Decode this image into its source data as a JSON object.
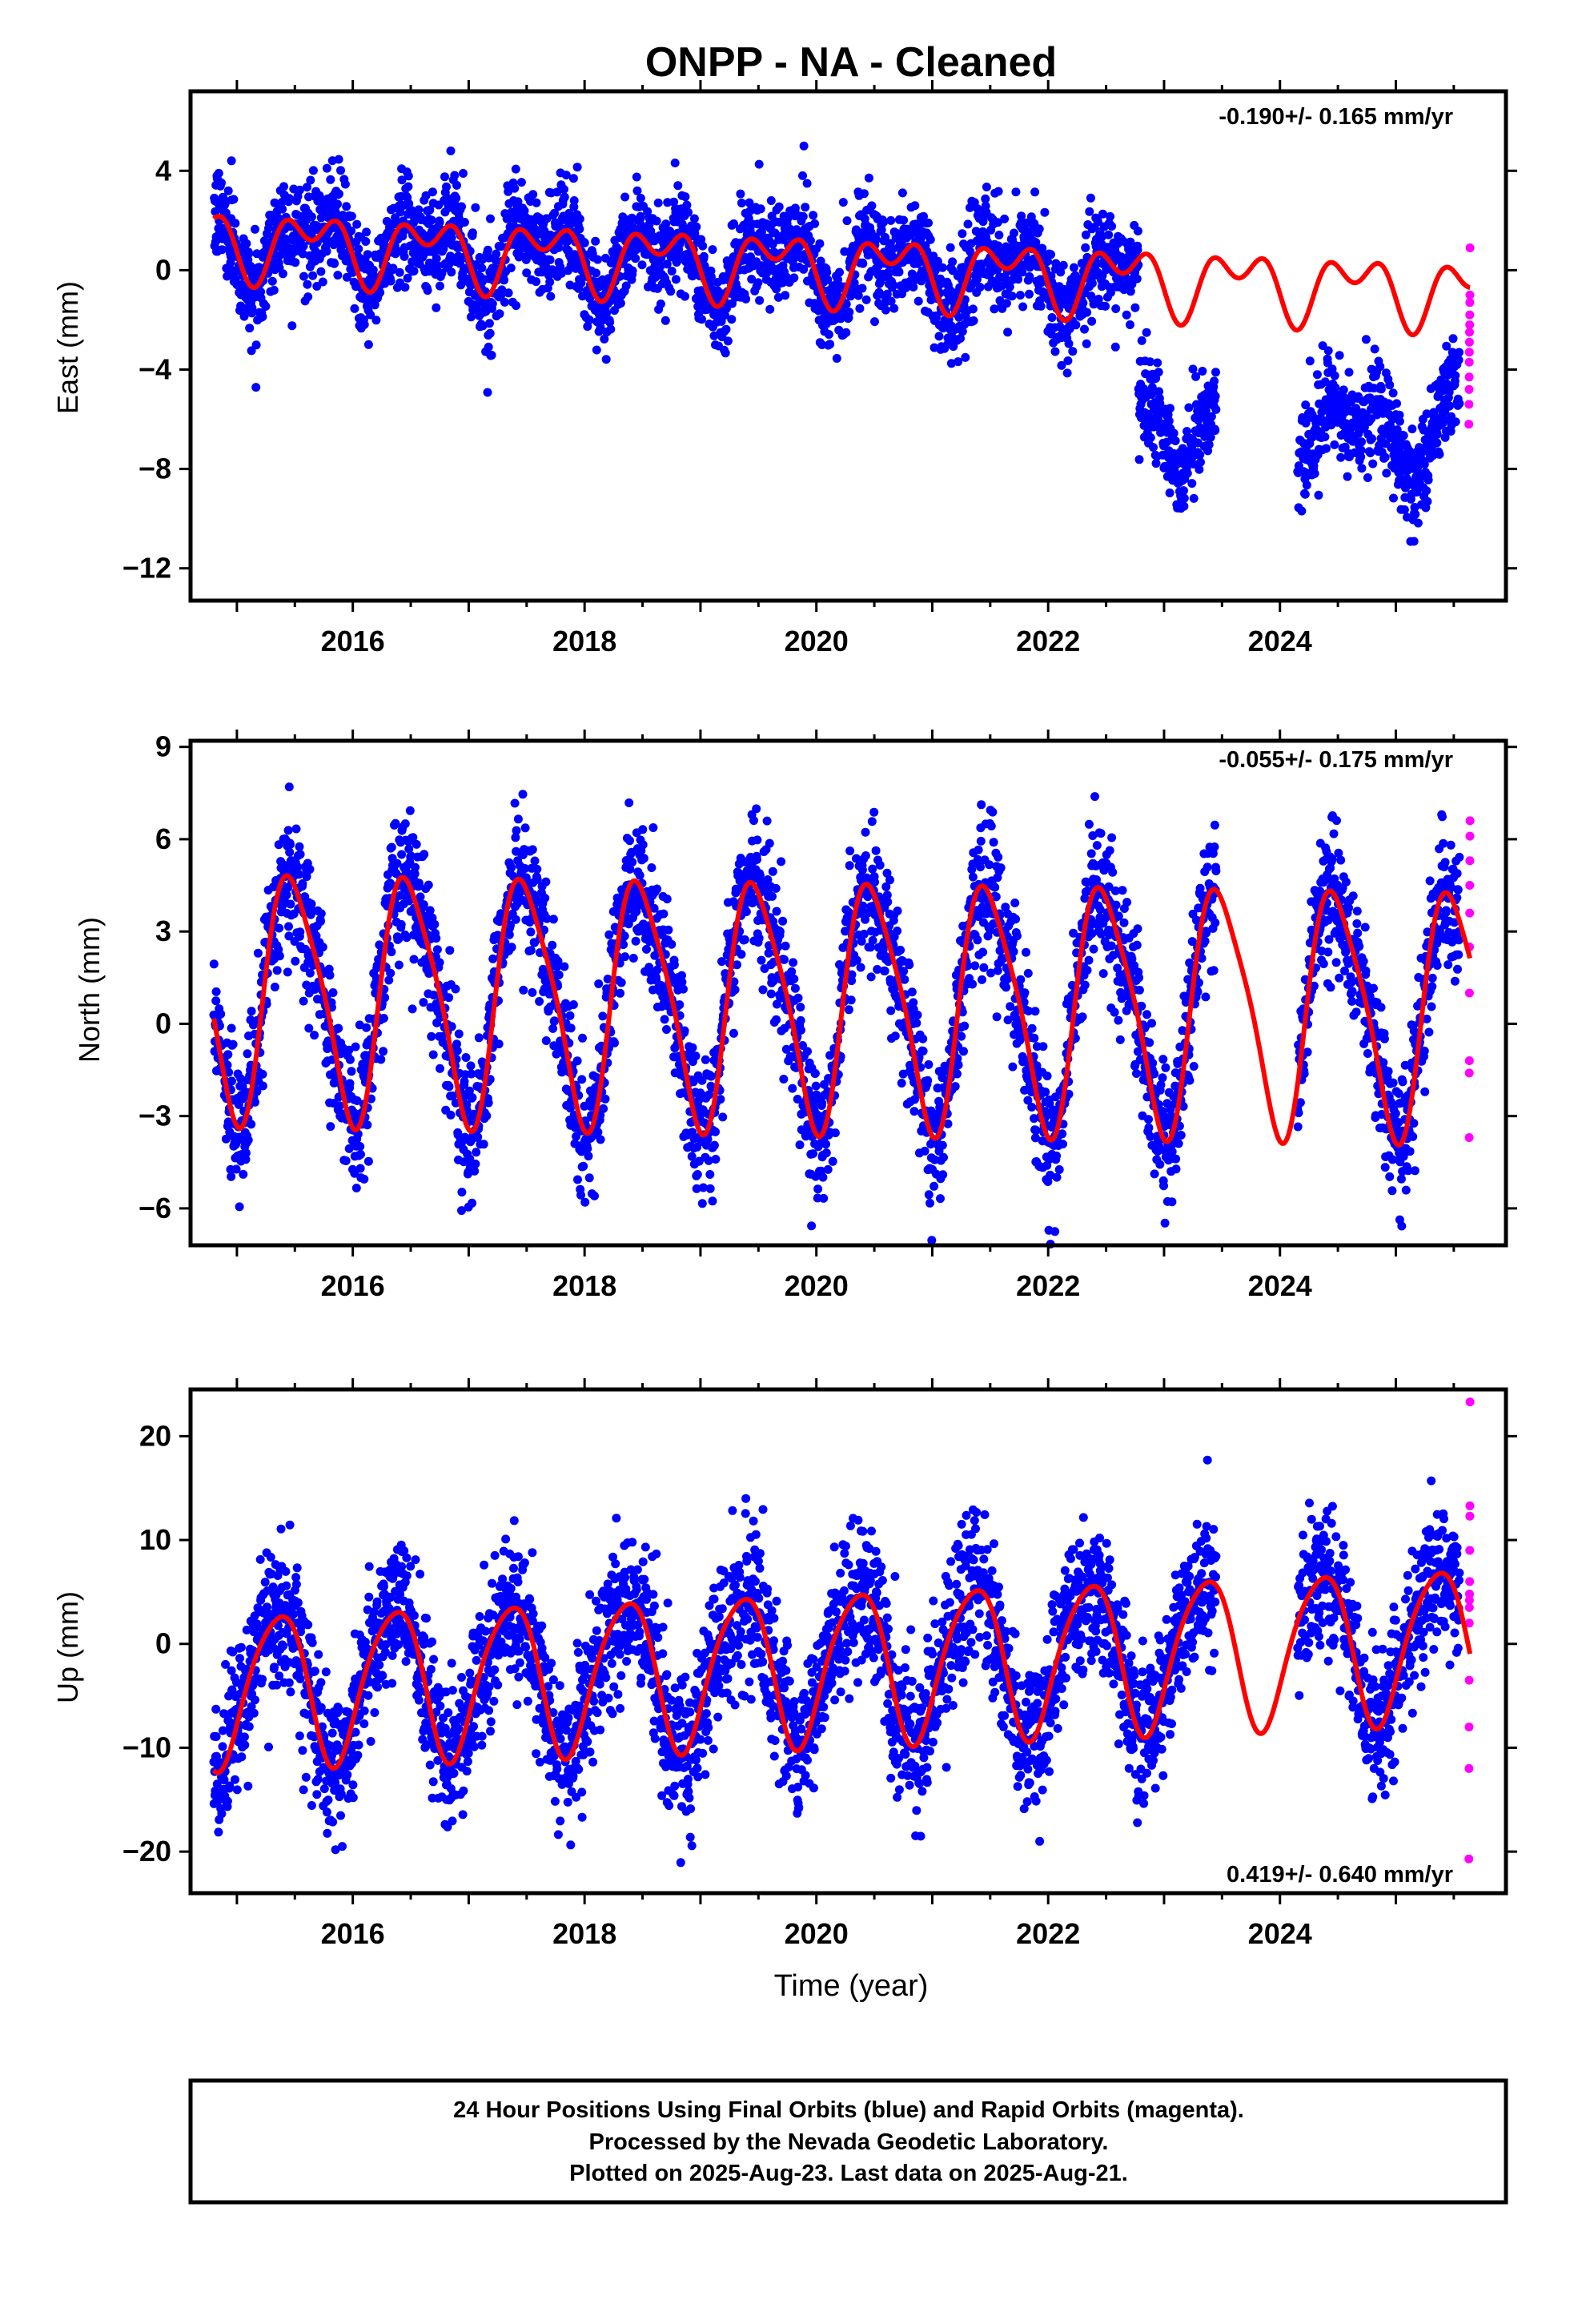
{
  "title": "ONPP  - NA - Cleaned",
  "xlabel": "Time (year)",
  "footer": [
    "24 Hour Positions Using Final Orbits (blue) and Rapid Orbits (magenta).",
    "Processed by the Nevada Geodetic Laboratory.",
    "Plotted on 2025-Aug-23. Last data on 2025-Aug-21."
  ],
  "colors": {
    "final": "#0000ff",
    "rapid": "#ff00ff",
    "model": "#ff0000",
    "frame": "#000000"
  },
  "chart_data": [
    {
      "type": "scatter",
      "name": "east",
      "ylabel": "East (mm)",
      "rate_label": "-0.190+/- 0.165 mm/yr",
      "xlim": [
        2014.6,
        2025.95
      ],
      "ylim": [
        -13.3,
        7.2
      ],
      "xticks": [
        2016,
        2018,
        2020,
        2022,
        2024
      ],
      "yticks": [
        4,
        0,
        -4,
        -8,
        -12
      ],
      "data_start": 2014.8,
      "final_end": 2025.55,
      "rapid_end": 2025.64,
      "gaps": [
        [
          2023.45,
          2024.15
        ]
      ],
      "model": {
        "offset": 0.2,
        "trend": -0.19,
        "annual": [
          -0.6,
          -0.8
        ],
        "semiannual": [
          0.2,
          -0.8
        ]
      },
      "jumps": [
        {
          "year": 2022.78,
          "size": -5.8,
          "recover_year": 2025.3,
          "recover_size": 2.3
        }
      ],
      "scatter_sd": 1.0,
      "rapid_values": [
        0.9,
        -1.0,
        -1.3,
        -1.8,
        -2.2,
        -2.5,
        -2.9,
        -3.3,
        -3.7,
        -4.3,
        -4.8,
        -5.4,
        -6.2
      ]
    },
    {
      "type": "scatter",
      "name": "north",
      "ylabel": "North (mm)",
      "rate_label": "-0.055+/- 0.175 mm/yr",
      "xlim": [
        2014.6,
        2025.95
      ],
      "ylim": [
        -7.2,
        9.2
      ],
      "xticks": [
        2016,
        2018,
        2020,
        2022,
        2024
      ],
      "yticks": [
        9,
        6,
        3,
        0,
        -3,
        -6
      ],
      "data_start": 2014.8,
      "final_end": 2025.55,
      "rapid_end": 2025.64,
      "gaps": [
        [
          2023.45,
          2024.15
        ]
      ],
      "model": {
        "offset": 0.7,
        "trend": -0.055,
        "annual": [
          -3.9,
          0.3
        ],
        "semiannual": [
          -0.4,
          -0.6
        ]
      },
      "jumps": [],
      "scatter_sd": 1.1,
      "rapid_values": [
        6.6,
        6.1,
        5.3,
        4.5,
        3.6,
        2.5,
        1.0,
        -1.2,
        -1.6,
        -3.7
      ]
    },
    {
      "type": "scatter",
      "name": "up",
      "ylabel": "Up (mm)",
      "rate_label": "0.419+/- 0.640 mm/yr",
      "xlim": [
        2014.6,
        2025.95
      ],
      "ylim": [
        -24,
        24.5
      ],
      "xticks": [
        2016,
        2018,
        2020,
        2022,
        2024
      ],
      "yticks": [
        20,
        10,
        0,
        -10,
        -20
      ],
      "data_start": 2014.8,
      "final_end": 2025.55,
      "rapid_end": 2025.64,
      "gaps": [
        [
          2023.45,
          2024.15
        ]
      ],
      "model": {
        "offset": -2.1,
        "trend": 0.419,
        "annual": [
          -4.4,
          5.8
        ],
        "semiannual": [
          0.8,
          0.6
        ]
      },
      "jumps": [],
      "scatter_sd": 3.6,
      "rapid_values": [
        23.3,
        13.3,
        12.3,
        9.0,
        6.0,
        4.8,
        4.2,
        3.5,
        2.0,
        -3.5,
        -8.0,
        -12.0,
        -20.7
      ]
    }
  ]
}
